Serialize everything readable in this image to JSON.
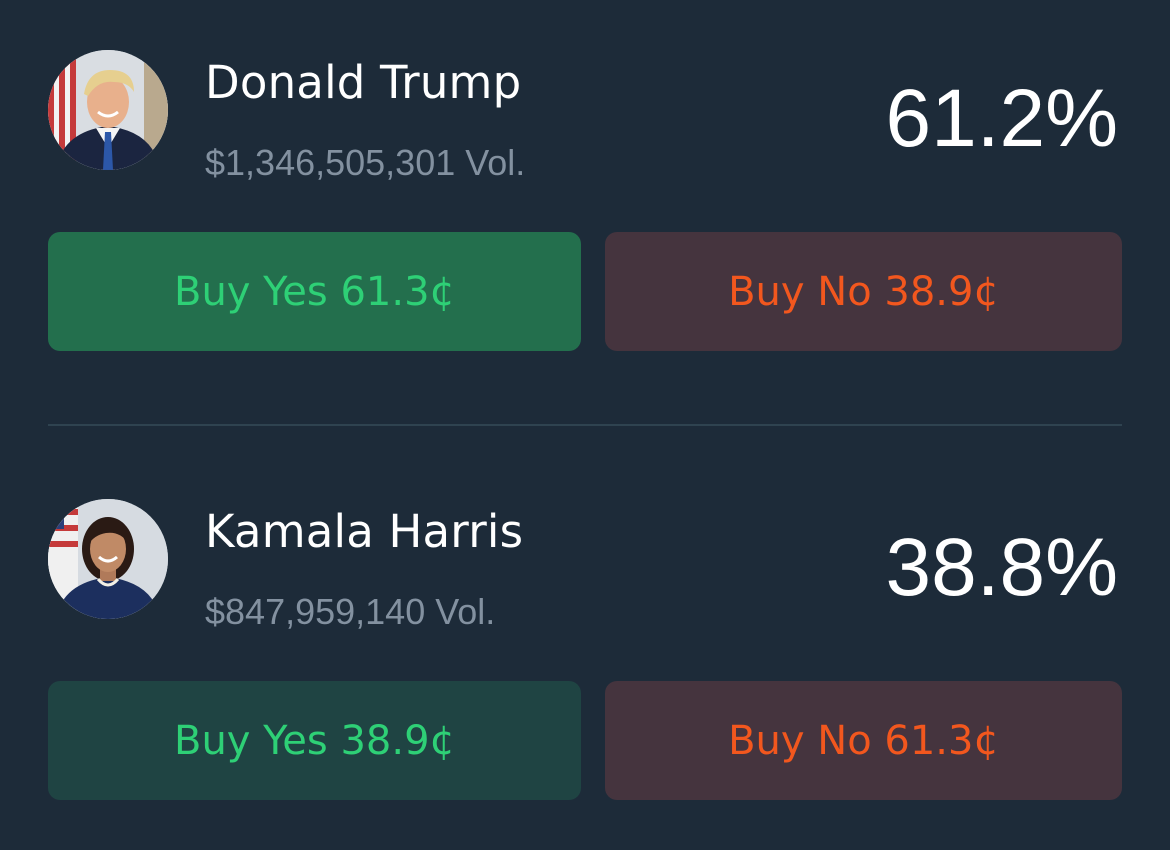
{
  "colors": {
    "background": "#1d2b39",
    "yes_text": "#2ed076",
    "yes_bg_active": "#236f4d",
    "yes_bg_muted": "#1f4443",
    "no_text": "#f2571e",
    "no_bg": "#45343e",
    "volume_text": "#8391a0",
    "divider": "#2f4350"
  },
  "markets": [
    {
      "name": "Donald Trump",
      "volume": "$1,346,505,301 Vol.",
      "percent": "61.2%",
      "buy_yes_label": "Buy Yes 61.3¢",
      "buy_no_label": "Buy No 38.9¢",
      "avatar_icon": "candidate-portrait"
    },
    {
      "name": "Kamala Harris",
      "volume": "$847,959,140 Vol.",
      "percent": "38.8%",
      "buy_yes_label": "Buy Yes 38.9¢",
      "buy_no_label": "Buy No 61.3¢",
      "avatar_icon": "candidate-portrait"
    }
  ]
}
